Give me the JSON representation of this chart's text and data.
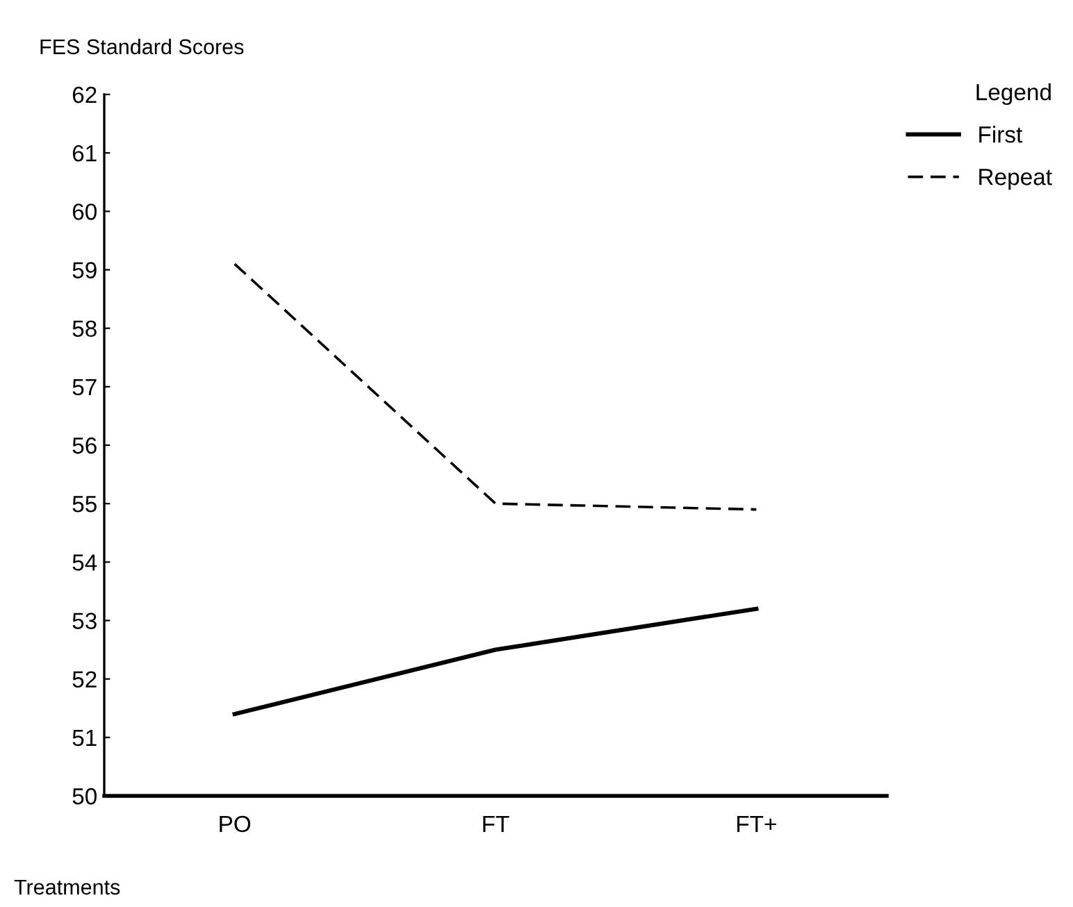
{
  "chart_data": {
    "type": "line",
    "ylabel": "FES Standard Scores",
    "xlabel": "Treatments",
    "legend_title": "Legend",
    "categories": [
      "PO",
      "FT",
      "FT+"
    ],
    "series": [
      {
        "name": "First",
        "color": "#000000",
        "values": [
          51.4,
          52.5,
          53.2
        ],
        "line_style": "solid"
      },
      {
        "name": "Repeat",
        "color": "#000000",
        "values": [
          59.1,
          55.0,
          54.9
        ],
        "line_style": "dashed"
      }
    ],
    "ylim": [
      50,
      62
    ],
    "yticks": [
      50,
      51,
      52,
      53,
      54,
      55,
      56,
      57,
      58,
      59,
      60,
      61,
      62
    ],
    "grid": false,
    "legend": "top right",
    "marker": "none"
  }
}
